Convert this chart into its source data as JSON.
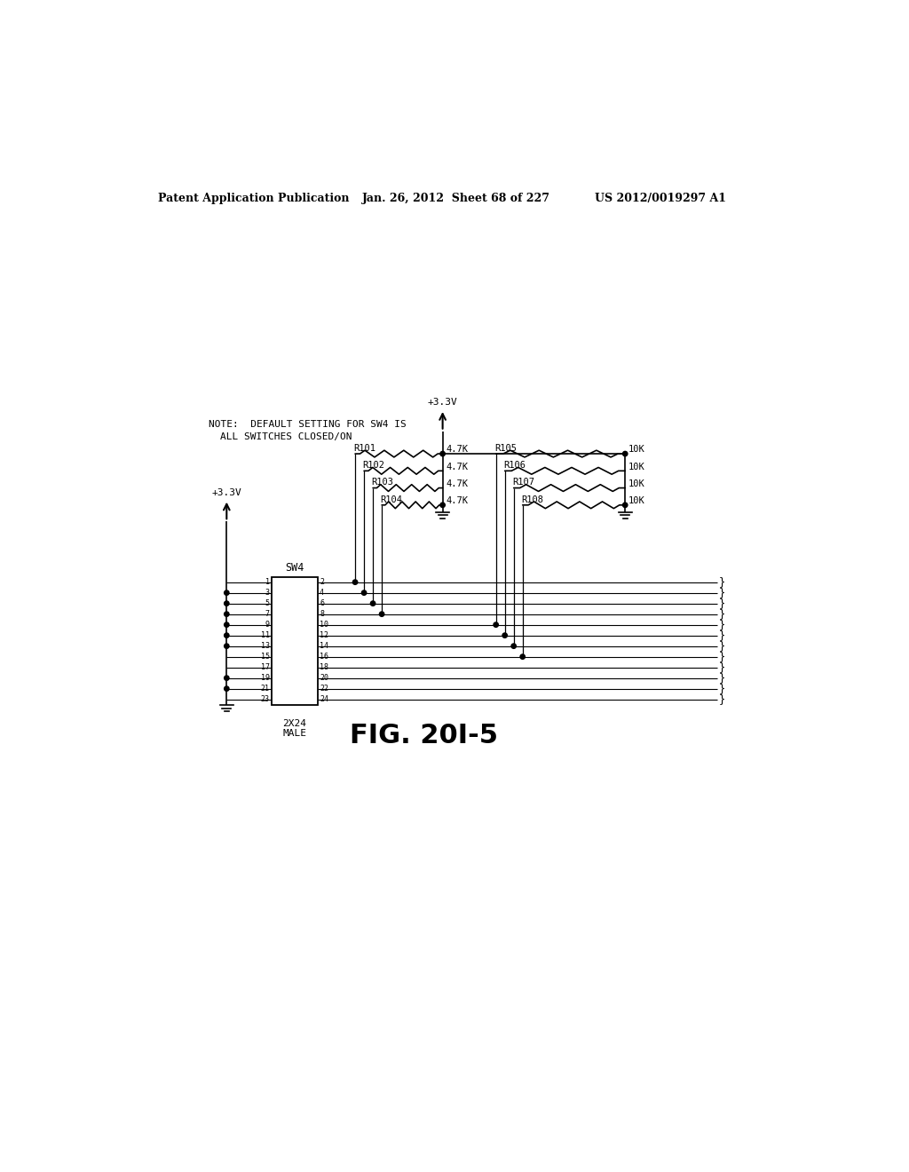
{
  "header_left": "Patent Application Publication",
  "header_mid": "Jan. 26, 2012  Sheet 68 of 227",
  "header_right": "US 2012/0019297 A1",
  "note_line1": "NOTE:  DEFAULT SETTING FOR SW4 IS",
  "note_line2": "ALL SWITCHES CLOSED/ON",
  "bg_color": "#ffffff",
  "fig_label": "FIG. 20I-5",
  "r_left_labels": [
    "R101",
    "R102",
    "R103",
    "R104"
  ],
  "r_left_vals": [
    "4.7K",
    "4.7K",
    "4.7K",
    "4.7K"
  ],
  "r_right_labels": [
    "R105",
    "R106",
    "R107",
    "R108"
  ],
  "r_right_vals": [
    "10K",
    "10K",
    "10K",
    "10K"
  ],
  "sw4_left_pins": [
    1,
    3,
    5,
    7,
    9,
    11,
    13,
    15,
    17,
    19,
    21,
    23
  ],
  "sw4_right_pins": [
    2,
    4,
    6,
    8,
    10,
    12,
    14,
    16,
    18,
    20,
    22,
    24
  ]
}
